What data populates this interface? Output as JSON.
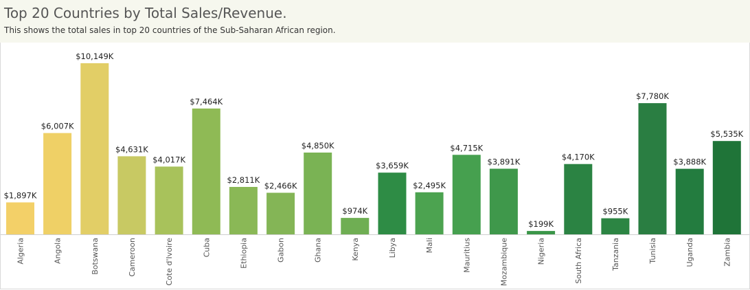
{
  "header": {
    "title": "Top 20 Countries by Total Sales/Revenue.",
    "subtitle": "This shows the total sales in top 20 countries of the Sub-Saharan African region."
  },
  "chart_data": {
    "type": "bar",
    "categories": [
      "Algeria",
      "Angola",
      "Botswana",
      "Cameroon",
      "Cote d'Ivoire",
      "Cuba",
      "Ethiopia",
      "Gabon",
      "Ghana",
      "Kenya",
      "Libya",
      "Mali",
      "Mauritius",
      "Mozambique",
      "Nigeria",
      "South Africa",
      "Tanzania",
      "Tunisia",
      "Uganda",
      "Zambia"
    ],
    "values": [
      1897,
      6007,
      10149,
      4631,
      4017,
      7464,
      2811,
      2466,
      4850,
      974,
      3659,
      2495,
      4715,
      3891,
      199,
      4170,
      955,
      7780,
      3888,
      5535
    ],
    "data_labels": [
      "$1,897K",
      "$6,007K",
      "$10,149K",
      "$4,631K",
      "$4,017K",
      "$7,464K",
      "$2,811K",
      "$2,466K",
      "$4,850K",
      "$974K",
      "$3,659K",
      "$2,495K",
      "$4,715K",
      "$3,891K",
      "$199K",
      "$4,170K",
      "$955K",
      "$7,780K",
      "$3,888K",
      "$5,535K"
    ],
    "colors": [
      "#f3d068",
      "#efd066",
      "#e2ce66",
      "#c8c963",
      "#a8c25b",
      "#8fba55",
      "#8ab856",
      "#84b556",
      "#7ab354",
      "#6fae53",
      "#2e8c45",
      "#4ca350",
      "#46a04f",
      "#3f984b",
      "#3a9648",
      "#2b8343",
      "#2c8543",
      "#2a7e42",
      "#237c3f",
      "#1f7438"
    ],
    "ylim": [
      0,
      10149
    ],
    "xlabel": "",
    "ylabel": ""
  }
}
